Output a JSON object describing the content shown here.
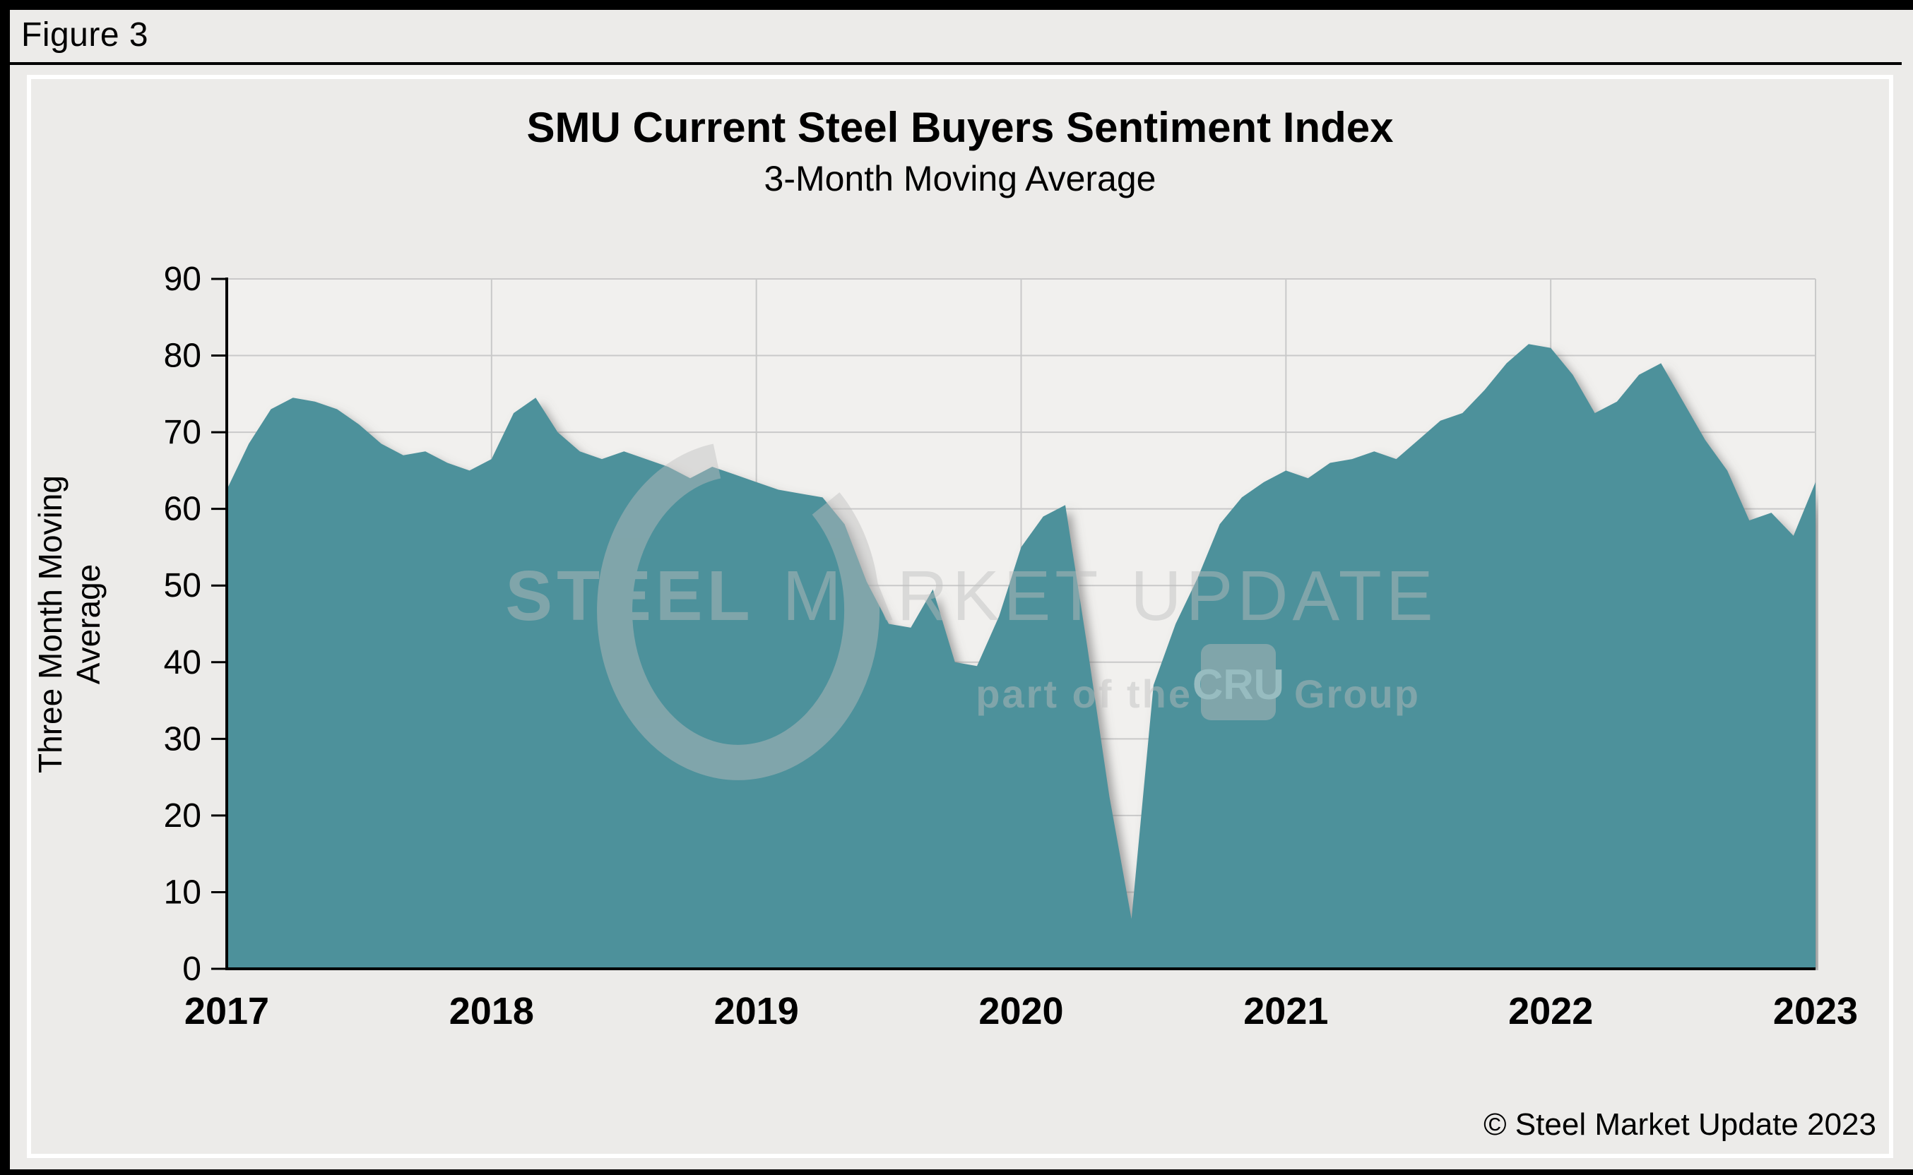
{
  "figure_label": "Figure 3",
  "header": {
    "title": "SMU Current Steel Buyers Sentiment Index",
    "subtitle": "3-Month Moving Average"
  },
  "y_axis_title": "Three Month Moving Average",
  "copyright": "© Steel Market Update 2023",
  "watermark": {
    "word1": "STEEL",
    "word2": "MARKET",
    "word3": "UPDATE",
    "tagline_left": "part of the",
    "tagline_box": "CRU",
    "tagline_right": "Group"
  },
  "chart_data": {
    "type": "area",
    "title": "SMU Current Steel Buyers Sentiment Index",
    "subtitle": "3-Month Moving Average",
    "xlabel": "",
    "ylabel": "Three Month Moving Average",
    "ylim": [
      0,
      90
    ],
    "y_ticks": [
      0,
      10,
      20,
      30,
      40,
      50,
      60,
      70,
      80,
      90
    ],
    "x_tick_labels": [
      "2017",
      "2018",
      "2019",
      "2020",
      "2021",
      "2022",
      "2023"
    ],
    "grid": true,
    "legend": false,
    "frequency": "monthly",
    "x_start": "2017-01",
    "x_end": "2023-01",
    "series": [
      {
        "name": "Current Steel Buyers Sentiment Index, 3-month moving average",
        "values": [
          62.5,
          68.5,
          73,
          74.5,
          74,
          73,
          71,
          68.5,
          67,
          67.5,
          66,
          65,
          66.5,
          72.5,
          74.5,
          70,
          67.5,
          66.5,
          67.5,
          66.5,
          65.5,
          64,
          65.5,
          64.5,
          63.5,
          62.5,
          62,
          61.5,
          58,
          50.5,
          45,
          44.5,
          49.5,
          40,
          39.5,
          46,
          55,
          59,
          60.5,
          42,
          22.5,
          6.5,
          37,
          45,
          51,
          58,
          61.5,
          63.5,
          65,
          64,
          66,
          66.5,
          67.5,
          66.5,
          69,
          71.5,
          72.5,
          75.5,
          79,
          81.5,
          81,
          77.5,
          72.5,
          74,
          77.5,
          79,
          74,
          69,
          65,
          58.5,
          59.5,
          56.5,
          63.5
        ]
      }
    ],
    "colors": {
      "area_fill": "#4E919B",
      "plot_background": "#F1F0EE",
      "page_background": "#ECEBE9",
      "gridline": "#C9C9C9",
      "axis": "#000000",
      "shadow": "#6B6B6B",
      "watermark": "#BEBEBE"
    }
  }
}
